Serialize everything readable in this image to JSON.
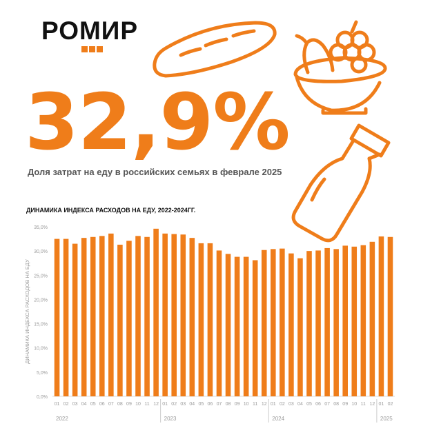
{
  "brand": {
    "name": "РОМИР"
  },
  "headline": {
    "value": "32,9%",
    "subtitle": "Доля затрат на еду в российских семьях в феврале 2025"
  },
  "icons": [
    "bread-icon",
    "fruit-bowl-icon",
    "milk-bottle-icon"
  ],
  "colors": {
    "accent": "#ef7d1a",
    "text": "#111111",
    "muted": "#9a9a9a"
  },
  "chart_data": {
    "type": "bar",
    "title": "ДИНАМИКА ИНДЕКСА РАСХОДОВ НА ЕДУ, 2022-2024ГГ.",
    "ylabel": "ДИНАМИКА ИНДЕКСА РАСХОДОВ НА ЕДУ",
    "ylim": [
      0,
      35
    ],
    "yticks": [
      0,
      5,
      10,
      15,
      20,
      25,
      30,
      35
    ],
    "ytick_labels": [
      "0,0%",
      "5,0%",
      "10,0%",
      "15,0%",
      "20,0%",
      "25,0%",
      "30,0%",
      "35,0%"
    ],
    "categories": [
      "01",
      "02",
      "03",
      "04",
      "05",
      "06",
      "07",
      "08",
      "09",
      "10",
      "11",
      "12",
      "01",
      "02",
      "03",
      "04",
      "05",
      "06",
      "07",
      "08",
      "09",
      "10",
      "11",
      "12",
      "01",
      "02",
      "03",
      "04",
      "05",
      "06",
      "07",
      "08",
      "09",
      "10",
      "11",
      "12",
      "01",
      "02"
    ],
    "year_labels": [
      {
        "label": "2022",
        "start_index": 0
      },
      {
        "label": "2023",
        "start_index": 12
      },
      {
        "label": "2024",
        "start_index": 24
      },
      {
        "label": "2025",
        "start_index": 36
      }
    ],
    "values": [
      32.5,
      32.5,
      31.5,
      32.7,
      32.9,
      33.1,
      33.6,
      31.3,
      32.1,
      33.1,
      32.9,
      34.6,
      33.6,
      33.5,
      33.4,
      32.7,
      31.6,
      31.6,
      30.1,
      29.4,
      28.8,
      28.8,
      28.1,
      30.2,
      30.4,
      30.5,
      29.5,
      28.5,
      30.0,
      30.1,
      30.6,
      30.4,
      31.1,
      30.9,
      31.2,
      31.9,
      33.0,
      32.9
    ],
    "grid": false,
    "legend": "none"
  }
}
